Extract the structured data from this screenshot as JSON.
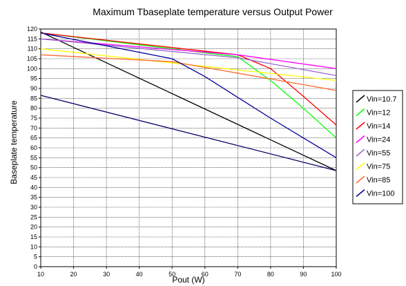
{
  "chart_data": {
    "type": "line",
    "title": "Maximum Tbaseplate temperature versus Output Power",
    "xlabel": "Pout (W)",
    "ylabel": "Baseplate temperature",
    "xlim": [
      10,
      100
    ],
    "ylim": [
      0,
      120
    ],
    "xticks": [
      10,
      20,
      30,
      40,
      50,
      60,
      70,
      80,
      90,
      100
    ],
    "yticks": [
      0,
      5,
      10,
      15,
      20,
      25,
      30,
      35,
      40,
      45,
      50,
      55,
      60,
      65,
      70,
      75,
      80,
      85,
      90,
      95,
      100,
      105,
      110,
      115,
      120
    ],
    "grid": true,
    "legend_position": "right",
    "series": [
      {
        "name": "Vin=10.7",
        "color": "#000000",
        "x": [
          10,
          100
        ],
        "y": [
          118.5,
          48.5
        ]
      },
      {
        "name": "Vin=12",
        "color": "#00ff00",
        "x": [
          10,
          70,
          80,
          90,
          100
        ],
        "y": [
          118,
          106,
          94,
          80,
          65
        ]
      },
      {
        "name": "Vin=14",
        "color": "#ff0000",
        "x": [
          10,
          70,
          80,
          90,
          100
        ],
        "y": [
          118,
          107,
          100,
          86,
          71.5
        ]
      },
      {
        "name": "Vin=24",
        "color": "#ff00ff",
        "x": [
          10,
          70,
          100
        ],
        "y": [
          115,
          107,
          100
        ]
      },
      {
        "name": "Vin=55",
        "color": "#9966cc",
        "x": [
          10,
          70,
          100
        ],
        "y": [
          115,
          105.5,
          96.5
        ]
      },
      {
        "name": "Vin=75",
        "color": "#ffff00",
        "x": [
          10,
          100
        ],
        "y": [
          110,
          94
        ]
      },
      {
        "name": "Vin=85",
        "color": "#ff6633",
        "x": [
          10,
          50,
          100
        ],
        "y": [
          107,
          103.5,
          89
        ]
      },
      {
        "name": "Vin=100",
        "color": "#000099",
        "x": [
          10,
          50,
          60,
          70,
          80,
          90,
          100
        ],
        "y": [
          118,
          105,
          96,
          85.5,
          75,
          65,
          55
        ]
      },
      {
        "name": "",
        "color": "#000066",
        "x": [
          10,
          100
        ],
        "y": [
          86.5,
          48.5
        ]
      }
    ]
  }
}
